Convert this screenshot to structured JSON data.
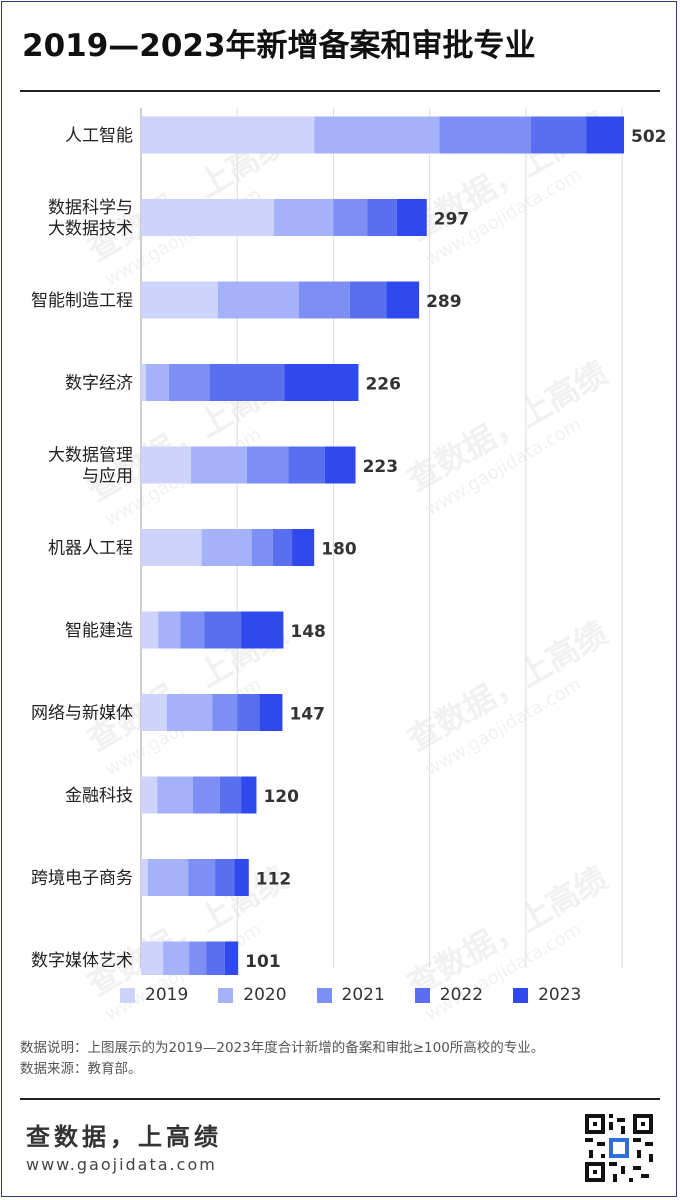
{
  "title": "2019—2023年新增备案和审批专业",
  "chart_data": {
    "type": "bar",
    "orientation": "horizontal",
    "stacked": true,
    "categories": [
      [
        "人工智能"
      ],
      [
        "数据科学与",
        "大数据技术"
      ],
      [
        "智能制造工程"
      ],
      [
        "数字经济"
      ],
      [
        "大数据管理",
        "与应用"
      ],
      [
        "机器人工程"
      ],
      [
        "智能建造"
      ],
      [
        "网络与新媒体"
      ],
      [
        "金融科技"
      ],
      [
        "跨境电子商务"
      ],
      [
        "数字媒体艺术"
      ]
    ],
    "totals": [
      "502",
      "297",
      "289",
      "226",
      "223",
      "180",
      "148",
      "147",
      "120",
      "112",
      "101"
    ],
    "series": [
      {
        "name": "2019",
        "color": "#cdd3fb",
        "values": [
          180,
          138,
          80,
          5,
          52,
          63,
          18,
          27,
          17,
          7,
          23
        ]
      },
      {
        "name": "2020",
        "color": "#a5b1f8",
        "values": [
          130,
          62,
          84,
          24,
          58,
          52,
          23,
          47,
          37,
          42,
          27
        ]
      },
      {
        "name": "2021",
        "color": "#7d8ef4",
        "values": [
          95,
          35,
          53,
          42,
          43,
          22,
          25,
          26,
          28,
          28,
          18
        ]
      },
      {
        "name": "2022",
        "color": "#5a6ff0",
        "values": [
          58,
          31,
          38,
          78,
          38,
          20,
          38,
          23,
          22,
          20,
          19
        ]
      },
      {
        "name": "2023",
        "color": "#2f49ee",
        "values": [
          39,
          31,
          34,
          77,
          32,
          23,
          44,
          24,
          16,
          15,
          14
        ]
      }
    ],
    "xlim": [
      0,
      510
    ],
    "grid": true
  },
  "legend": [
    "2019",
    "2020",
    "2021",
    "2022",
    "2023"
  ],
  "notes": {
    "line1": "数据说明：上图展示的为2019—2023年度合计新增的备案和审批≥100所高校的专业。",
    "line2": "数据来源：教育部。"
  },
  "brand": {
    "name": "查数据，上高绩",
    "url": "www.gaojidata.com"
  },
  "watermark": {
    "text": "查数据，上高绩",
    "url": "www.gaojidata.com"
  }
}
